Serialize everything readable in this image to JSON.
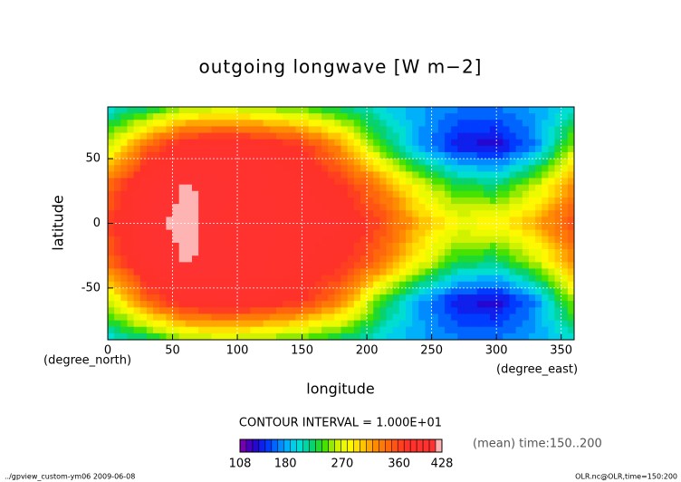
{
  "chart_data": {
    "type": "contour",
    "title": "outgoing longwave [W m−2]",
    "xlabel": "longitude",
    "ylabel": "latitude",
    "x_unit": "(degree_east)",
    "y_unit": "(degree_north)",
    "contour_note": "CONTOUR INTERVAL = 1.000E+01",
    "time_note": "(mean) time:150..200",
    "footer_left": "../gpview_custom-ym06  2009-06-08",
    "footer_right": "OLR.nc@OLR,time=150:200",
    "xlim": [
      0,
      360
    ],
    "ylim": [
      -90,
      90
    ],
    "xticks": [
      0,
      50,
      100,
      150,
      200,
      250,
      300,
      350
    ],
    "yticks": [
      -50,
      0,
      50
    ],
    "grid": true,
    "x": [
      0,
      30,
      60,
      90,
      120,
      150,
      180,
      210,
      240,
      270,
      300,
      330,
      360
    ],
    "y": [
      90,
      60,
      30,
      0,
      -30,
      -60,
      -90
    ],
    "z": [
      [
        200,
        220,
        250,
        260,
        250,
        240,
        220,
        200,
        180,
        170,
        170,
        180,
        200
      ],
      [
        260,
        340,
        390,
        400,
        390,
        370,
        320,
        240,
        180,
        140,
        130,
        170,
        260
      ],
      [
        340,
        400,
        420,
        410,
        400,
        390,
        370,
        330,
        270,
        230,
        220,
        260,
        320
      ],
      [
        360,
        410,
        425,
        405,
        400,
        395,
        390,
        360,
        310,
        280,
        285,
        310,
        360
      ],
      [
        340,
        400,
        420,
        410,
        400,
        390,
        375,
        340,
        280,
        230,
        220,
        260,
        320
      ],
      [
        260,
        340,
        390,
        400,
        390,
        370,
        330,
        240,
        180,
        140,
        130,
        170,
        260
      ],
      [
        200,
        220,
        250,
        260,
        250,
        240,
        220,
        200,
        180,
        170,
        170,
        180,
        200
      ]
    ],
    "clim": [
      108,
      428
    ],
    "level_step": 10,
    "colorscale": [
      {
        "value": 108,
        "color": "#8a00a8"
      },
      {
        "value": 130,
        "color": "#2a00c8"
      },
      {
        "value": 150,
        "color": "#0030ff"
      },
      {
        "value": 180,
        "color": "#00a8ff"
      },
      {
        "value": 200,
        "color": "#00e0e0"
      },
      {
        "value": 220,
        "color": "#00d080"
      },
      {
        "value": 240,
        "color": "#30e000"
      },
      {
        "value": 260,
        "color": "#c8f000"
      },
      {
        "value": 280,
        "color": "#ffff00"
      },
      {
        "value": 300,
        "color": "#ffd000"
      },
      {
        "value": 320,
        "color": "#ff9000"
      },
      {
        "value": 350,
        "color": "#ff5a10"
      },
      {
        "value": 370,
        "color": "#ff3228"
      },
      {
        "value": 415,
        "color": "#ff3232"
      },
      {
        "value": 420,
        "color": "#ffb4b4"
      },
      {
        "value": 428,
        "color": "#ffb4b4"
      }
    ],
    "colorbar_ticks": [
      108,
      180,
      270,
      360,
      428
    ]
  }
}
